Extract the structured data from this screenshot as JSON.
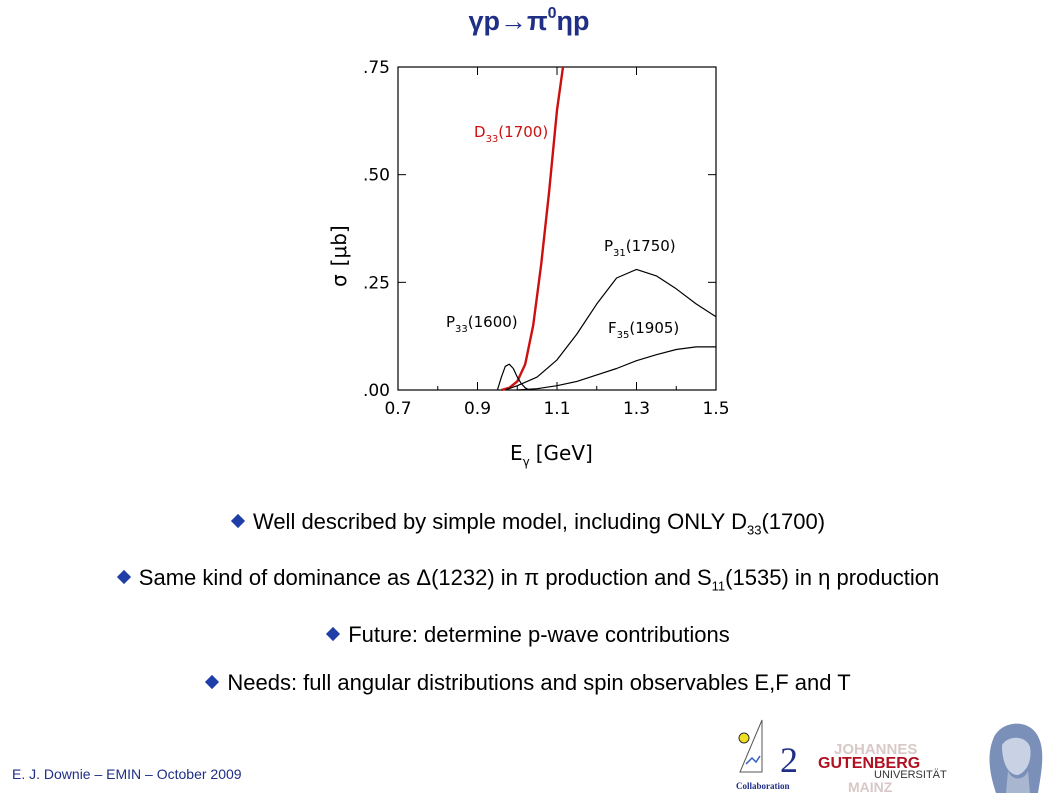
{
  "slide": {
    "title_main": "γp→π",
    "title_sup": "0",
    "title_end": "ηp",
    "footer": "E. J. Downie – EMIN – October 2009"
  },
  "bullets": [
    {
      "pre": "Well described by simple model, including ONLY D",
      "sub": "33",
      "post": "(1700)"
    },
    {
      "pre": "Same kind of dominance as Δ(1232) in π production and S",
      "sub": "11",
      "post": "(1535) in η production"
    },
    {
      "pre": "Future: determine p-wave contributions",
      "sub": "",
      "post": ""
    },
    {
      "pre": "Needs: full angular distributions and spin observables E,F and T",
      "sub": "",
      "post": ""
    }
  ],
  "logos": {
    "collab_two": "2",
    "collab_text": "Collaboration",
    "jgu_line1": "JOHANNES",
    "jgu_line2": "GUTENBERG",
    "jgu_line3": "UNIVERSITÄT",
    "jgu_line4": "MAINZ"
  },
  "chart_data": {
    "type": "line",
    "xlabel": "E",
    "xlabel_sub": "γ",
    "xlabel_unit": "[GeV]",
    "ylabel": "σ",
    "ylabel_unit": "[μb]",
    "xlim": [
      0.7,
      1.5
    ],
    "ylim": [
      0.0,
      0.75
    ],
    "xticks": [
      0.7,
      0.9,
      1.1,
      1.3,
      1.5
    ],
    "xtick_labels": [
      "0.7",
      "0.9",
      "1.1",
      "1.3",
      "1.5"
    ],
    "yticks": [
      0.0,
      0.25,
      0.5,
      0.75
    ],
    "ytick_labels": [
      ".00",
      ".25",
      ".50",
      ".75"
    ],
    "series": [
      {
        "name": "D33(1700)",
        "label_main": "D",
        "label_sub": "33",
        "label_end": "(1700)",
        "color": "#cc1010",
        "x": [
          0.96,
          0.98,
          1.0,
          1.02,
          1.04,
          1.06,
          1.08,
          1.1,
          1.115
        ],
        "y": [
          0.0,
          0.005,
          0.02,
          0.06,
          0.15,
          0.29,
          0.46,
          0.65,
          0.75
        ]
      },
      {
        "name": "P33(1600)",
        "label_main": "P",
        "label_sub": "33",
        "label_end": "(1600)",
        "color": "#000000",
        "x": [
          0.95,
          0.96,
          0.97,
          0.98,
          0.99,
          1.0,
          1.01,
          1.02,
          1.03
        ],
        "y": [
          0.0,
          0.03,
          0.055,
          0.06,
          0.05,
          0.03,
          0.015,
          0.005,
          0.0
        ]
      },
      {
        "name": "P31(1750)",
        "label_main": "P",
        "label_sub": "31",
        "label_end": "(1750)",
        "color": "#000000",
        "x": [
          0.97,
          1.0,
          1.05,
          1.1,
          1.15,
          1.2,
          1.25,
          1.3,
          1.35,
          1.4,
          1.45,
          1.5
        ],
        "y": [
          0.0,
          0.01,
          0.03,
          0.07,
          0.13,
          0.2,
          0.26,
          0.28,
          0.265,
          0.235,
          0.2,
          0.17
        ]
      },
      {
        "name": "F35(1905)",
        "label_main": "F",
        "label_sub": "35",
        "label_end": "(1905)",
        "color": "#000000",
        "x": [
          1.0,
          1.05,
          1.1,
          1.15,
          1.2,
          1.25,
          1.3,
          1.35,
          1.4,
          1.45,
          1.5
        ],
        "y": [
          0.0,
          0.003,
          0.01,
          0.02,
          0.035,
          0.05,
          0.068,
          0.082,
          0.094,
          0.1,
          0.1
        ]
      }
    ]
  }
}
